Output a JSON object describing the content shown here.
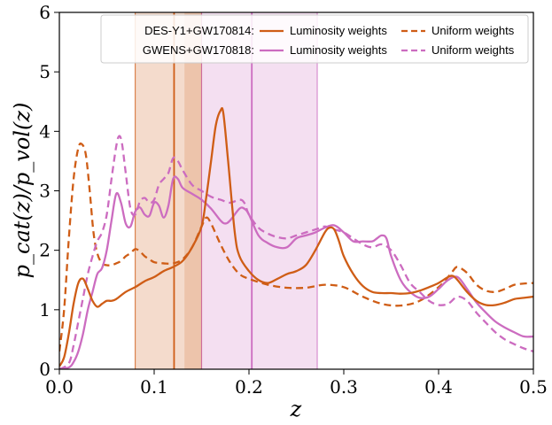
{
  "chart_data": {
    "type": "line",
    "xlabel": "z",
    "ylabel": "p_cat(z)/p_vol(z)",
    "xlim": [
      0.0,
      0.5
    ],
    "ylim": [
      0,
      6
    ],
    "xticks": [
      0.0,
      0.1,
      0.2,
      0.3,
      0.4,
      0.5
    ],
    "xtick_labels": [
      "0.0",
      "0.1",
      "0.2",
      "0.3",
      "0.4",
      "0.5"
    ],
    "yticks": [
      0,
      1,
      2,
      3,
      4,
      5,
      6
    ],
    "ytick_labels": [
      "0",
      "1",
      "2",
      "3",
      "4",
      "5",
      "6"
    ],
    "grid": false,
    "legend": {
      "placement": "top-right",
      "rows": [
        {
          "label": "DES-Y1+GW170814:",
          "entries": [
            {
              "label": "Luminosity weights",
              "series": 0
            },
            {
              "label": "Uniform weights",
              "series": 1
            }
          ]
        },
        {
          "label": "GWENS+GW170818:",
          "entries": [
            {
              "label": "Luminosity weights",
              "series": 2
            },
            {
              "label": "Uniform weights",
              "series": 3
            }
          ]
        }
      ]
    },
    "bands": [
      {
        "x_start": 0.08,
        "x_end": 0.15,
        "x_center": 0.121,
        "color": "#cf5d16"
      },
      {
        "x_start": 0.15,
        "x_end": 0.272,
        "x_center": 0.203,
        "color": "#cc6cc0"
      },
      {
        "x_start": 0.132,
        "x_end": 0.15,
        "color": "#cf5d16",
        "overlap": true
      }
    ],
    "series": [
      {
        "group": "DES-Y1+GW170814",
        "weighting": "Luminosity weights",
        "color": "#cf5d16",
        "dash": "solid",
        "x": [
          0.0,
          0.005,
          0.01,
          0.015,
          0.02,
          0.025,
          0.03,
          0.035,
          0.04,
          0.045,
          0.05,
          0.055,
          0.06,
          0.07,
          0.08,
          0.09,
          0.1,
          0.11,
          0.12,
          0.13,
          0.14,
          0.15,
          0.155,
          0.16,
          0.165,
          0.17,
          0.173,
          0.178,
          0.185,
          0.19,
          0.2,
          0.21,
          0.22,
          0.23,
          0.24,
          0.25,
          0.26,
          0.27,
          0.28,
          0.285,
          0.29,
          0.295,
          0.3,
          0.31,
          0.32,
          0.33,
          0.34,
          0.35,
          0.36,
          0.37,
          0.38,
          0.39,
          0.4,
          0.41,
          0.415,
          0.42,
          0.43,
          0.44,
          0.45,
          0.46,
          0.47,
          0.48,
          0.49,
          0.5
        ],
        "y": [
          0.05,
          0.2,
          0.6,
          1.1,
          1.45,
          1.52,
          1.35,
          1.15,
          1.05,
          1.1,
          1.15,
          1.15,
          1.18,
          1.3,
          1.38,
          1.48,
          1.55,
          1.65,
          1.72,
          1.82,
          2.05,
          2.4,
          2.9,
          3.5,
          4.1,
          4.35,
          4.3,
          3.5,
          2.3,
          1.9,
          1.65,
          1.5,
          1.45,
          1.52,
          1.6,
          1.65,
          1.75,
          2.0,
          2.3,
          2.38,
          2.35,
          2.15,
          1.9,
          1.6,
          1.4,
          1.3,
          1.28,
          1.28,
          1.27,
          1.28,
          1.32,
          1.38,
          1.45,
          1.55,
          1.57,
          1.5,
          1.3,
          1.15,
          1.08,
          1.08,
          1.12,
          1.18,
          1.2,
          1.22
        ]
      },
      {
        "group": "DES-Y1+GW170814",
        "weighting": "Uniform weights",
        "color": "#cf5d16",
        "dash": "dashed",
        "x": [
          0.0,
          0.005,
          0.01,
          0.015,
          0.02,
          0.024,
          0.028,
          0.032,
          0.036,
          0.04,
          0.045,
          0.05,
          0.055,
          0.06,
          0.065,
          0.07,
          0.075,
          0.08,
          0.085,
          0.09,
          0.095,
          0.1,
          0.11,
          0.12,
          0.13,
          0.14,
          0.15,
          0.155,
          0.16,
          0.17,
          0.18,
          0.19,
          0.2,
          0.22,
          0.24,
          0.26,
          0.28,
          0.3,
          0.32,
          0.34,
          0.36,
          0.38,
          0.4,
          0.41,
          0.415,
          0.42,
          0.43,
          0.44,
          0.45,
          0.46,
          0.47,
          0.48,
          0.49,
          0.5
        ],
        "y": [
          0.3,
          1.0,
          2.2,
          3.2,
          3.72,
          3.78,
          3.6,
          3.0,
          2.3,
          1.95,
          1.78,
          1.75,
          1.75,
          1.78,
          1.82,
          1.9,
          1.95,
          2.02,
          1.98,
          1.9,
          1.85,
          1.8,
          1.78,
          1.78,
          1.85,
          2.05,
          2.4,
          2.55,
          2.45,
          2.1,
          1.8,
          1.6,
          1.52,
          1.42,
          1.37,
          1.37,
          1.42,
          1.38,
          1.22,
          1.1,
          1.07,
          1.15,
          1.38,
          1.55,
          1.65,
          1.72,
          1.62,
          1.42,
          1.32,
          1.3,
          1.35,
          1.42,
          1.44,
          1.45
        ]
      },
      {
        "group": "GWENS+GW170818",
        "weighting": "Luminosity weights",
        "color": "#cc6cc0",
        "dash": "solid",
        "x": [
          0.0,
          0.01,
          0.015,
          0.02,
          0.025,
          0.03,
          0.035,
          0.04,
          0.045,
          0.05,
          0.055,
          0.06,
          0.065,
          0.07,
          0.075,
          0.08,
          0.085,
          0.09,
          0.095,
          0.1,
          0.105,
          0.11,
          0.115,
          0.12,
          0.125,
          0.13,
          0.14,
          0.15,
          0.16,
          0.17,
          0.175,
          0.18,
          0.19,
          0.195,
          0.2,
          0.21,
          0.22,
          0.23,
          0.24,
          0.25,
          0.26,
          0.27,
          0.28,
          0.29,
          0.3,
          0.31,
          0.32,
          0.33,
          0.335,
          0.34,
          0.345,
          0.35,
          0.36,
          0.37,
          0.38,
          0.39,
          0.4,
          0.41,
          0.42,
          0.43,
          0.44,
          0.45,
          0.46,
          0.47,
          0.48,
          0.49,
          0.5
        ],
        "y": [
          0.0,
          0.03,
          0.12,
          0.3,
          0.6,
          1.0,
          1.3,
          1.6,
          1.7,
          2.0,
          2.5,
          2.95,
          2.8,
          2.45,
          2.4,
          2.65,
          2.72,
          2.6,
          2.58,
          2.8,
          2.75,
          2.55,
          2.75,
          3.2,
          3.2,
          3.05,
          2.95,
          2.85,
          2.7,
          2.5,
          2.45,
          2.5,
          2.7,
          2.7,
          2.6,
          2.25,
          2.12,
          2.05,
          2.05,
          2.2,
          2.25,
          2.3,
          2.38,
          2.42,
          2.3,
          2.15,
          2.15,
          2.15,
          2.2,
          2.25,
          2.2,
          1.9,
          1.5,
          1.3,
          1.2,
          1.22,
          1.35,
          1.5,
          1.55,
          1.35,
          1.12,
          0.95,
          0.8,
          0.7,
          0.62,
          0.55,
          0.55
        ]
      },
      {
        "group": "GWENS+GW170818",
        "weighting": "Uniform weights",
        "color": "#cc6cc0",
        "dash": "dashed",
        "x": [
          0.0,
          0.01,
          0.015,
          0.02,
          0.025,
          0.03,
          0.035,
          0.04,
          0.045,
          0.05,
          0.055,
          0.06,
          0.063,
          0.066,
          0.07,
          0.075,
          0.08,
          0.085,
          0.09,
          0.095,
          0.1,
          0.105,
          0.11,
          0.115,
          0.12,
          0.125,
          0.13,
          0.14,
          0.15,
          0.16,
          0.17,
          0.18,
          0.19,
          0.195,
          0.2,
          0.21,
          0.22,
          0.23,
          0.24,
          0.25,
          0.26,
          0.27,
          0.28,
          0.29,
          0.3,
          0.31,
          0.32,
          0.33,
          0.34,
          0.35,
          0.36,
          0.37,
          0.38,
          0.39,
          0.4,
          0.41,
          0.42,
          0.43,
          0.44,
          0.45,
          0.46,
          0.47,
          0.48,
          0.49,
          0.5
        ],
        "y": [
          0.0,
          0.1,
          0.4,
          0.8,
          1.2,
          1.6,
          1.9,
          2.15,
          2.3,
          2.6,
          3.2,
          3.75,
          3.92,
          3.8,
          3.3,
          2.7,
          2.6,
          2.82,
          2.88,
          2.8,
          2.85,
          3.1,
          3.2,
          3.3,
          3.55,
          3.5,
          3.35,
          3.1,
          3.0,
          2.9,
          2.85,
          2.8,
          2.85,
          2.8,
          2.6,
          2.38,
          2.28,
          2.22,
          2.2,
          2.25,
          2.3,
          2.35,
          2.4,
          2.35,
          2.3,
          2.2,
          2.1,
          2.05,
          2.1,
          2.0,
          1.75,
          1.45,
          1.3,
          1.15,
          1.08,
          1.1,
          1.22,
          1.15,
          0.95,
          0.78,
          0.62,
          0.5,
          0.42,
          0.35,
          0.3
        ]
      }
    ]
  }
}
